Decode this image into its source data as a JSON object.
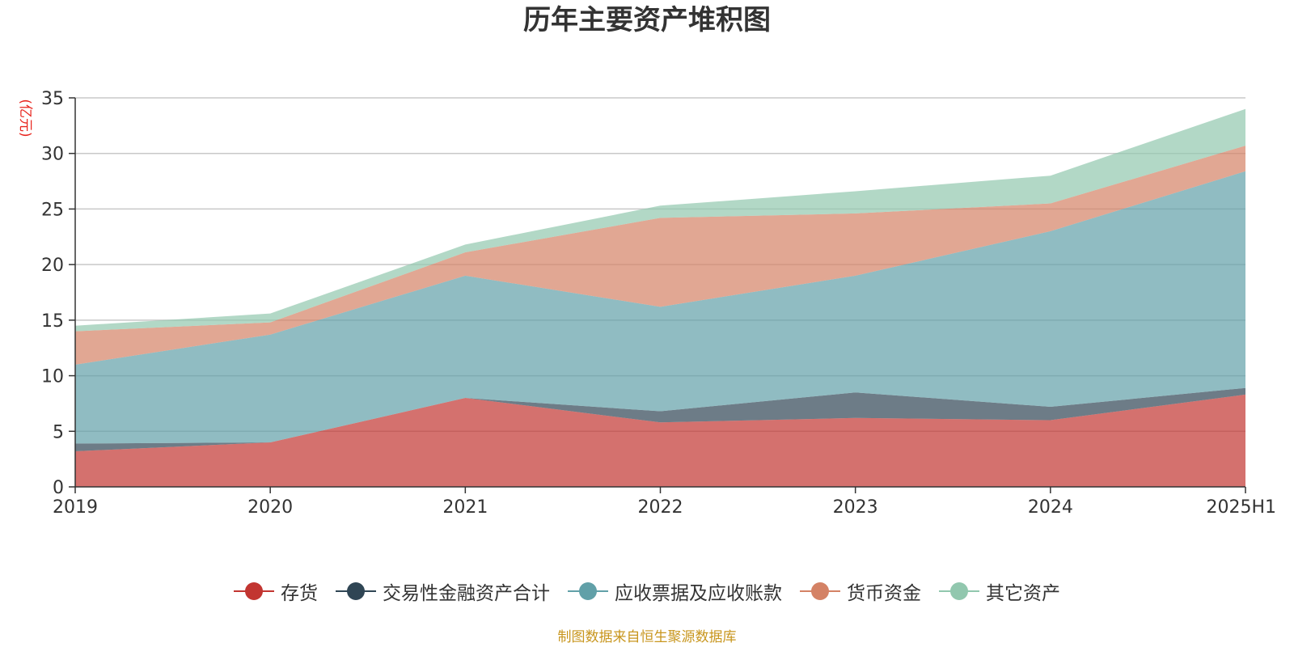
{
  "chart_data": {
    "type": "area",
    "stacked": true,
    "title": "历年主要资产堆积图",
    "unit_label": "(亿元)",
    "xlabel": "",
    "ylabel": "",
    "categories": [
      "2019",
      "2020",
      "2021",
      "2022",
      "2023",
      "2024",
      "2025H1"
    ],
    "ylim": [
      0,
      35
    ],
    "yticks": [
      0,
      5,
      10,
      15,
      20,
      25,
      30,
      35
    ],
    "grid": true,
    "legend_position": "bottom",
    "series": [
      {
        "name": "存货",
        "color": "#c23531",
        "values": [
          3.2,
          4.0,
          8.0,
          5.8,
          6.2,
          6.0,
          8.3
        ]
      },
      {
        "name": "交易性金融资产合计",
        "color": "#2f4554",
        "values": [
          0.7,
          0.0,
          0.0,
          1.0,
          2.3,
          1.2,
          0.6
        ]
      },
      {
        "name": "应收票据及应收账款",
        "color": "#61a0a8",
        "values": [
          7.1,
          9.7,
          11.0,
          9.4,
          10.5,
          15.8,
          19.5
        ]
      },
      {
        "name": "货币资金",
        "color": "#d48265",
        "values": [
          3.0,
          1.1,
          2.1,
          8.0,
          5.6,
          2.5,
          2.3
        ]
      },
      {
        "name": "其它资产",
        "color": "#91c7ae",
        "values": [
          0.5,
          0.8,
          0.7,
          1.1,
          2.0,
          2.5,
          3.3
        ]
      }
    ]
  },
  "source_note": "制图数据来自恒生聚源数据库"
}
